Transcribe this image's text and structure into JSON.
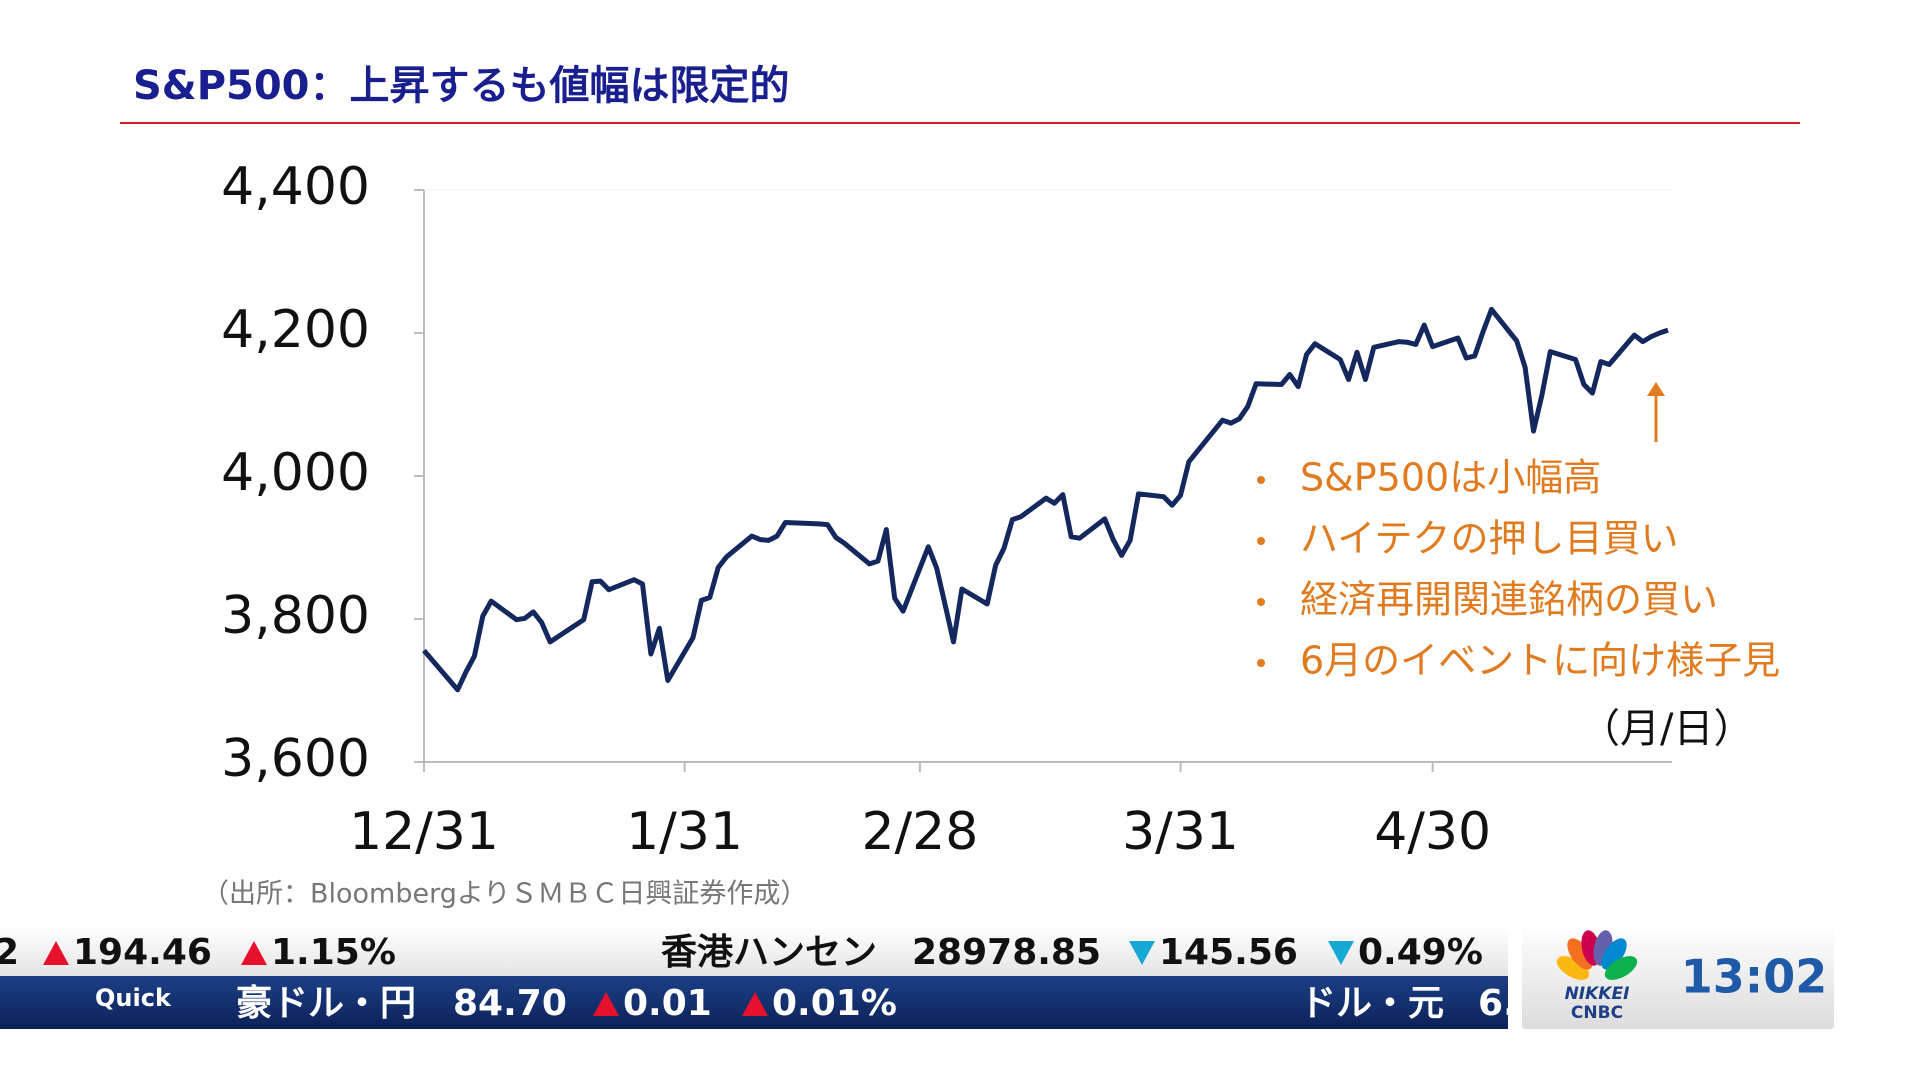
{
  "chart_data": {
    "type": "line",
    "title": "S&P500：上昇するも値幅は限定的",
    "x": [
      "12/31",
      "1/4",
      "1/5",
      "1/6",
      "1/7",
      "1/8",
      "1/11",
      "1/12",
      "1/13",
      "1/14",
      "1/15",
      "1/19",
      "1/20",
      "1/21",
      "1/22",
      "1/25",
      "1/26",
      "1/27",
      "1/28",
      "1/29",
      "2/1",
      "2/2",
      "2/3",
      "2/4",
      "2/5",
      "2/8",
      "2/9",
      "2/10",
      "2/11",
      "2/12",
      "2/16",
      "2/17",
      "2/18",
      "2/19",
      "2/22",
      "2/23",
      "2/24",
      "2/25",
      "2/26",
      "3/1",
      "3/2",
      "3/3",
      "3/4",
      "3/5",
      "3/8",
      "3/9",
      "3/10",
      "3/11",
      "3/12",
      "3/15",
      "3/16",
      "3/17",
      "3/18",
      "3/19",
      "3/22",
      "3/23",
      "3/24",
      "3/25",
      "3/26",
      "3/29",
      "3/30",
      "3/31",
      "4/1",
      "4/5",
      "4/6",
      "4/7",
      "4/8",
      "4/9",
      "4/12",
      "4/13",
      "4/14",
      "4/15",
      "4/16",
      "4/19",
      "4/20",
      "4/21",
      "4/22",
      "4/23",
      "4/26",
      "4/27",
      "4/28",
      "4/29",
      "4/30",
      "5/3",
      "5/4",
      "5/5",
      "5/6",
      "5/7",
      "5/10",
      "5/11",
      "5/12",
      "5/13",
      "5/14",
      "5/17",
      "5/18",
      "5/19",
      "5/20",
      "5/21",
      "5/24",
      "5/25",
      "5/26",
      "5/27",
      "5/28"
    ],
    "values": [
      3756,
      3701,
      3726,
      3748,
      3804,
      3825,
      3799,
      3801,
      3810,
      3795,
      3768,
      3799,
      3852,
      3853,
      3841,
      3855,
      3849,
      3751,
      3787,
      3714,
      3774,
      3826,
      3830,
      3872,
      3887,
      3916,
      3911,
      3910,
      3916,
      3935,
      3933,
      3932,
      3914,
      3906,
      3877,
      3881,
      3925,
      3829,
      3811,
      3901,
      3871,
      3820,
      3768,
      3842,
      3821,
      3875,
      3899,
      3939,
      3943,
      3969,
      3962,
      3974,
      3915,
      3913,
      3940,
      3911,
      3889,
      3910,
      3975,
      3971,
      3959,
      3973,
      4020,
      4078,
      4074,
      4080,
      4097,
      4129,
      4128,
      4142,
      4125,
      4170,
      4185,
      4163,
      4135,
      4173,
      4135,
      4180,
      4188,
      4187,
      4184,
      4211,
      4181,
      4193,
      4165,
      4168,
      4202,
      4233,
      4189,
      4152,
      4063,
      4113,
      4174,
      4163,
      4128,
      4116,
      4160,
      4156,
      4197,
      4188,
      4195,
      4200,
      4204
    ],
    "color": "#14285e",
    "xlim": [
      "12/31",
      "5/28"
    ],
    "xticks": [
      "12/31",
      "1/31",
      "2/28",
      "3/31",
      "4/30"
    ],
    "ylim": [
      3600,
      4400
    ],
    "yticks": [
      {
        "value": 3600,
        "label": "3,600"
      },
      {
        "value": 3800,
        "label": "3,800"
      },
      {
        "value": 4000,
        "label": "4,000"
      },
      {
        "value": 4200,
        "label": "4,200"
      },
      {
        "value": 4400,
        "label": "4,400"
      }
    ],
    "grid": false,
    "annotations": [
      "S&P500は小幅高",
      "ハイテクの押し目買い",
      "経済再開関連銘柄の買い",
      "6月のイベントに向け様子見"
    ],
    "x_unit_label": "（月/日）",
    "source": "（出所：BloombergよりＳＭＢＣ日興証券作成）"
  },
  "ticker": {
    "row1": [
      {
        "text": "2"
      },
      {
        "text": "194.46",
        "direction": "up"
      },
      {
        "text": "1.15%",
        "direction": "up"
      },
      {
        "text": "香港ハンセン"
      },
      {
        "text": "28978.85"
      },
      {
        "text": "145.56",
        "direction": "down"
      },
      {
        "text": "0.49%",
        "direction": "down"
      }
    ],
    "row2": [
      {
        "text": "Quick"
      },
      {
        "text": "豪ドル・円"
      },
      {
        "text": "84.70"
      },
      {
        "text": "0.01",
        "direction": "up"
      },
      {
        "text": "0.01%",
        "direction": "up"
      },
      {
        "text": "ドル・元"
      },
      {
        "text": "6."
      }
    ]
  },
  "logo": {
    "brand1": "NIKKEI",
    "brand2": "CNBC"
  },
  "clock": "13:02"
}
